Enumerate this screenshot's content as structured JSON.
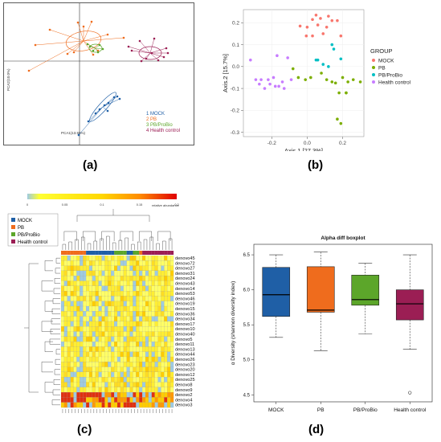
{
  "captions": {
    "a": "(a)",
    "b": "(b)",
    "c": "(c)",
    "d": "(d)"
  },
  "colors": {
    "mock": "#1f5fa6",
    "pb": "#ef6c1d",
    "pbprobio": "#5ca62a",
    "health": "#9b1e54",
    "b_mock": "#f8766d",
    "b_pb": "#7cae00",
    "b_pbprobio": "#00bfc4",
    "b_health": "#c77cff"
  },
  "panel_a": {
    "pc1_label": "PCA1(13.55%)",
    "pc2_label": "PCA2(10.0%)",
    "legend": [
      {
        "label": "1 MOCK",
        "color": "#1f5fa6"
      },
      {
        "label": "2 PB",
        "color": "#ef6c1d"
      },
      {
        "label": "3 PB/ProBio",
        "color": "#5ca62a"
      },
      {
        "label": "4 Health control",
        "color": "#9b1e54"
      }
    ]
  },
  "panel_b": {
    "chart_data": {
      "type": "scatter",
      "xlabel": "Axis.1   [27.3%]",
      "ylabel": "Axis.2   [15.7%]",
      "xlim": [
        -0.36,
        0.32
      ],
      "ylim": [
        -0.32,
        0.26
      ],
      "xticks": [
        "-0.2",
        "0.0",
        "0.2"
      ],
      "xtick_values": [
        -0.2,
        0.0,
        0.2
      ],
      "yticks": [
        "0.2",
        "0.1",
        "0.0",
        "-0.1",
        "-0.2",
        "-0.3"
      ],
      "ytick_values": [
        0.2,
        0.1,
        0.0,
        -0.1,
        -0.2,
        -0.3
      ],
      "legend_title": "GROUP",
      "series": [
        {
          "name": "MOCK",
          "color": "#f8766d",
          "points": [
            [
              -0.04,
              0.185
            ],
            [
              0.0,
              0.18
            ],
            [
              0.03,
              0.215
            ],
            [
              0.05,
              0.235
            ],
            [
              0.075,
              0.22
            ],
            [
              0.12,
              0.23
            ],
            [
              0.14,
              0.21
            ],
            [
              0.17,
              0.21
            ],
            [
              0.06,
              0.19
            ],
            [
              0.11,
              0.18
            ],
            [
              0.03,
              0.14
            ],
            [
              0.09,
              0.15
            ],
            [
              -0.005,
              0.14
            ],
            [
              0.19,
              0.14
            ]
          ]
        },
        {
          "name": "PB",
          "color": "#7cae00",
          "points": [
            [
              -0.08,
              -0.01
            ],
            [
              -0.05,
              -0.05
            ],
            [
              -0.01,
              -0.06
            ],
            [
              0.02,
              -0.05
            ],
            [
              0.08,
              -0.03
            ],
            [
              0.11,
              -0.06
            ],
            [
              0.14,
              -0.07
            ],
            [
              0.16,
              -0.075
            ],
            [
              0.2,
              -0.05
            ],
            [
              0.23,
              -0.07
            ],
            [
              0.26,
              -0.06
            ],
            [
              0.3,
              -0.07
            ],
            [
              0.22,
              -0.12
            ],
            [
              0.18,
              -0.12
            ],
            [
              0.17,
              -0.24
            ],
            [
              0.19,
              -0.26
            ],
            [
              0.22,
              -0.12
            ]
          ]
        },
        {
          "name": "PB/ProBio",
          "color": "#00bfc4",
          "points": [
            [
              0.05,
              0.03
            ],
            [
              0.06,
              0.03
            ],
            [
              0.09,
              0.01
            ],
            [
              0.12,
              0.0
            ],
            [
              0.15,
              0.08
            ],
            [
              0.14,
              0.1
            ],
            [
              0.19,
              0.035
            ]
          ]
        },
        {
          "name": "Health control",
          "color": "#c77cff",
          "points": [
            [
              -0.32,
              0.03
            ],
            [
              -0.29,
              -0.06
            ],
            [
              -0.27,
              -0.08
            ],
            [
              -0.26,
              -0.06
            ],
            [
              -0.24,
              -0.1
            ],
            [
              -0.22,
              -0.06
            ],
            [
              -0.21,
              -0.08
            ],
            [
              -0.19,
              -0.05
            ],
            [
              -0.18,
              -0.09
            ],
            [
              -0.17,
              0.05
            ],
            [
              -0.16,
              -0.09
            ],
            [
              -0.14,
              -0.07
            ],
            [
              -0.13,
              -0.1
            ],
            [
              -0.11,
              0.04
            ],
            [
              -0.09,
              -0.06
            ]
          ]
        }
      ]
    }
  },
  "panel_c": {
    "scale_ticks": [
      "0",
      "0.05",
      "0.1",
      "0.15",
      "0.2"
    ],
    "scale_label": "relative abundance",
    "legend": [
      {
        "label": "MOCK",
        "color": "#1f5fa6"
      },
      {
        "label": "PB",
        "color": "#ef6c1d"
      },
      {
        "label": "PB/ProBio",
        "color": "#5ca62a"
      },
      {
        "label": "Health control",
        "color": "#9b1e54"
      }
    ],
    "rows": [
      "denovo45",
      "denovo72",
      "denovo27",
      "denovo31",
      "denovo24",
      "denovo43",
      "denovo14",
      "denovo53",
      "denovo46",
      "denovo19",
      "denovo15",
      "denovo36",
      "denovo34",
      "denovo17",
      "denovo10",
      "denovo40",
      "denovo5",
      "denovo11",
      "denovo13",
      "denovo44",
      "denovo26",
      "denovo23",
      "denovo20",
      "denovo12",
      "denovo25",
      "denovo8",
      "denovo9",
      "denovo2",
      "denovo4",
      "denovo3"
    ]
  },
  "panel_d": {
    "chart_data": {
      "type": "boxplot",
      "title": "Alpha diff boxplot",
      "ylabel": "α Diversity (shannon diversity index)",
      "ylim": [
        4.4,
        6.65
      ],
      "yticks": [
        "4.5",
        "5.0",
        "5.5",
        "6.0",
        "6.5"
      ],
      "ytick_values": [
        4.5,
        5.0,
        5.5,
        6.0,
        6.5
      ],
      "categories": [
        "MOCK",
        "PB",
        "PB/ProBio",
        "Health control"
      ],
      "boxes": [
        {
          "name": "MOCK",
          "color": "#1f5fa6",
          "min": 5.32,
          "q1": 5.62,
          "median": 5.93,
          "q3": 6.32,
          "max": 6.5,
          "outliers": []
        },
        {
          "name": "PB",
          "color": "#ef6c1d",
          "min": 5.13,
          "q1": 5.68,
          "median": 5.71,
          "q3": 6.33,
          "max": 6.54,
          "outliers": []
        },
        {
          "name": "PB/ProBio",
          "color": "#5ca62a",
          "min": 5.37,
          "q1": 5.78,
          "median": 5.86,
          "q3": 6.21,
          "max": 6.38,
          "outliers": []
        },
        {
          "name": "Health control",
          "color": "#9b1e54",
          "min": 5.15,
          "q1": 5.57,
          "median": 5.8,
          "q3": 6.0,
          "max": 6.5,
          "outliers": [
            4.53
          ]
        }
      ]
    }
  }
}
